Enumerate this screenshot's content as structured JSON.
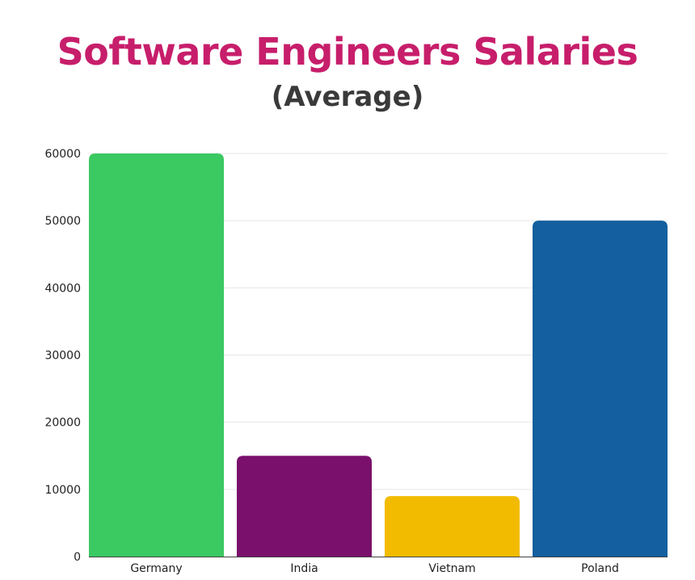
{
  "chart_data": {
    "type": "bar",
    "title": "Software Engineers Salaries",
    "subtitle": "(Average)",
    "categories": [
      "Germany",
      "India",
      "Vietnam",
      "Poland"
    ],
    "values": [
      60000,
      15000,
      9000,
      50000
    ],
    "bar_colors": [
      "#3bc962",
      "#7a106b",
      "#f2bb00",
      "#145f9f"
    ],
    "ylim": [
      0,
      60000
    ],
    "yticks": [
      0,
      10000,
      20000,
      30000,
      40000,
      50000,
      60000
    ],
    "ytick_labels": [
      "0",
      "10000",
      "20000",
      "30000",
      "40000",
      "50000",
      "60000"
    ],
    "grid": true,
    "legend": "none"
  },
  "colors": {
    "title": "#c71e6b",
    "subtitle": "#3a3a3a",
    "gridline": "#e6e6e6",
    "axis": "#444444"
  }
}
